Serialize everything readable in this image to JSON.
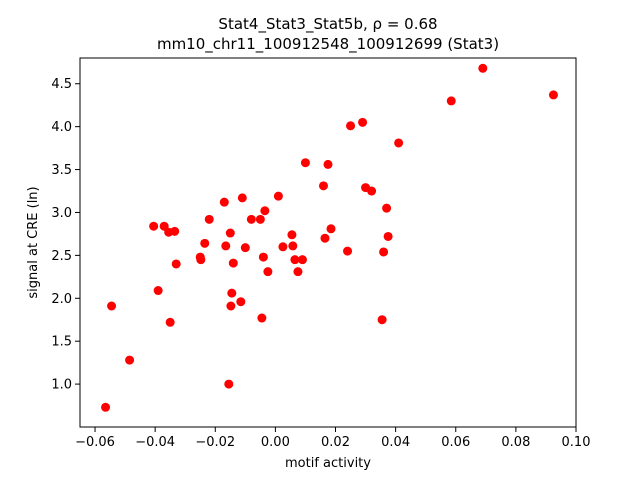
{
  "chart_data": {
    "type": "scatter",
    "title_line1": "Stat4_Stat3_Stat5b, ρ = 0.68",
    "title_line2": "mm10_chr11_100912548_100912699 (Stat3)",
    "xlabel": "motif activity",
    "ylabel": "signal at CRE (ln)",
    "xlim": [
      -0.065,
      0.1
    ],
    "ylim": [
      0.5,
      4.8
    ],
    "xticks": [
      -0.06,
      -0.04,
      -0.02,
      0.0,
      0.02,
      0.04,
      0.06,
      0.08,
      0.1
    ],
    "xtick_labels": [
      "−0.06",
      "−0.04",
      "−0.02",
      "0.00",
      "0.02",
      "0.04",
      "0.06",
      "0.08",
      "0.10"
    ],
    "yticks": [
      1.0,
      1.5,
      2.0,
      2.5,
      3.0,
      3.5,
      4.0,
      4.5
    ],
    "ytick_labels": [
      "1.0",
      "1.5",
      "2.0",
      "2.5",
      "3.0",
      "3.5",
      "4.0",
      "4.5"
    ],
    "grid": false,
    "marker_color": "#ff0000",
    "points": [
      {
        "x": -0.0565,
        "y": 0.73
      },
      {
        "x": -0.0545,
        "y": 1.91
      },
      {
        "x": -0.0485,
        "y": 1.28
      },
      {
        "x": -0.0405,
        "y": 2.84
      },
      {
        "x": -0.039,
        "y": 2.09
      },
      {
        "x": -0.037,
        "y": 2.84
      },
      {
        "x": -0.0355,
        "y": 2.77
      },
      {
        "x": -0.035,
        "y": 1.72
      },
      {
        "x": -0.0335,
        "y": 2.78
      },
      {
        "x": -0.033,
        "y": 2.4
      },
      {
        "x": -0.025,
        "y": 2.48
      },
      {
        "x": -0.0248,
        "y": 2.45
      },
      {
        "x": -0.0235,
        "y": 2.64
      },
      {
        "x": -0.022,
        "y": 2.92
      },
      {
        "x": -0.017,
        "y": 3.12
      },
      {
        "x": -0.0165,
        "y": 2.61
      },
      {
        "x": -0.0155,
        "y": 1.0
      },
      {
        "x": -0.015,
        "y": 2.76
      },
      {
        "x": -0.0148,
        "y": 1.91
      },
      {
        "x": -0.0145,
        "y": 2.06
      },
      {
        "x": -0.014,
        "y": 2.41
      },
      {
        "x": -0.0115,
        "y": 1.96
      },
      {
        "x": -0.011,
        "y": 3.17
      },
      {
        "x": -0.01,
        "y": 2.59
      },
      {
        "x": -0.008,
        "y": 2.92
      },
      {
        "x": -0.005,
        "y": 2.92
      },
      {
        "x": -0.0045,
        "y": 1.77
      },
      {
        "x": -0.004,
        "y": 2.48
      },
      {
        "x": -0.0035,
        "y": 3.02
      },
      {
        "x": -0.0025,
        "y": 2.31
      },
      {
        "x": 0.001,
        "y": 3.19
      },
      {
        "x": 0.0025,
        "y": 2.6
      },
      {
        "x": 0.0055,
        "y": 2.74
      },
      {
        "x": 0.0058,
        "y": 2.61
      },
      {
        "x": 0.0065,
        "y": 2.45
      },
      {
        "x": 0.0075,
        "y": 2.31
      },
      {
        "x": 0.009,
        "y": 2.45
      },
      {
        "x": 0.01,
        "y": 3.58
      },
      {
        "x": 0.016,
        "y": 3.31
      },
      {
        "x": 0.0165,
        "y": 2.7
      },
      {
        "x": 0.0175,
        "y": 3.56
      },
      {
        "x": 0.0185,
        "y": 2.81
      },
      {
        "x": 0.024,
        "y": 2.55
      },
      {
        "x": 0.025,
        "y": 4.01
      },
      {
        "x": 0.029,
        "y": 4.05
      },
      {
        "x": 0.03,
        "y": 3.29
      },
      {
        "x": 0.032,
        "y": 3.25
      },
      {
        "x": 0.0355,
        "y": 1.75
      },
      {
        "x": 0.036,
        "y": 2.54
      },
      {
        "x": 0.037,
        "y": 3.05
      },
      {
        "x": 0.0375,
        "y": 2.72
      },
      {
        "x": 0.041,
        "y": 3.81
      },
      {
        "x": 0.0585,
        "y": 4.3
      },
      {
        "x": 0.069,
        "y": 4.68
      },
      {
        "x": 0.0925,
        "y": 4.37
      }
    ]
  }
}
